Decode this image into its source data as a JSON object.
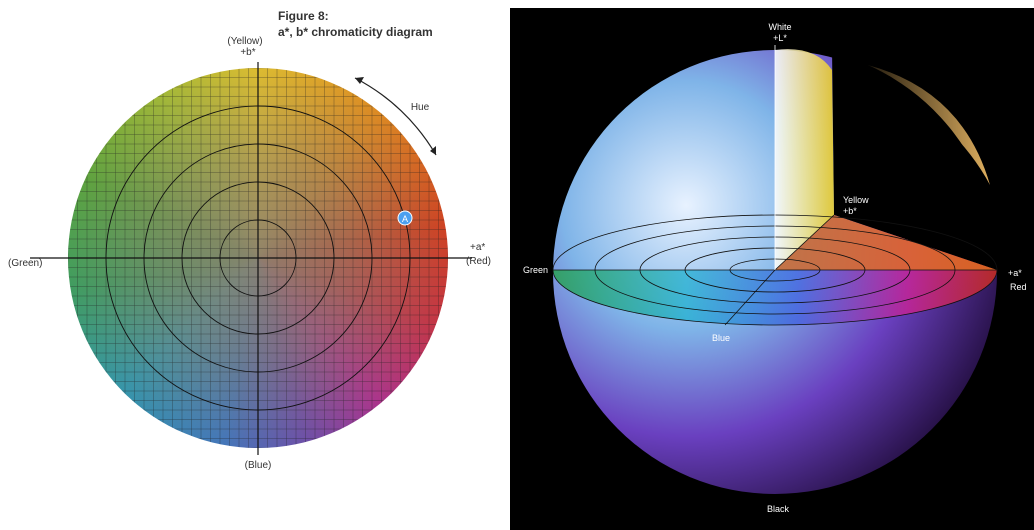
{
  "left": {
    "figure_label": "Figure 8:",
    "title": "a*, b* chromaticity diagram",
    "top_name": "(Yellow)",
    "top_axis": "+b*",
    "right_axis": "+a*",
    "right_name": "(Red)",
    "left_name": "(Green)",
    "bottom_name": "(Blue)",
    "hue_label": "Hue",
    "point_label": "A"
  },
  "right": {
    "top_name": "White",
    "top_axis": "+L*",
    "yellow_name": "Yellow",
    "yellow_axis": "+b*",
    "green_name": "Green",
    "right_axis": "+a*",
    "right_name": "Red",
    "blue_name": "Blue",
    "bottom_name": "Black"
  }
}
